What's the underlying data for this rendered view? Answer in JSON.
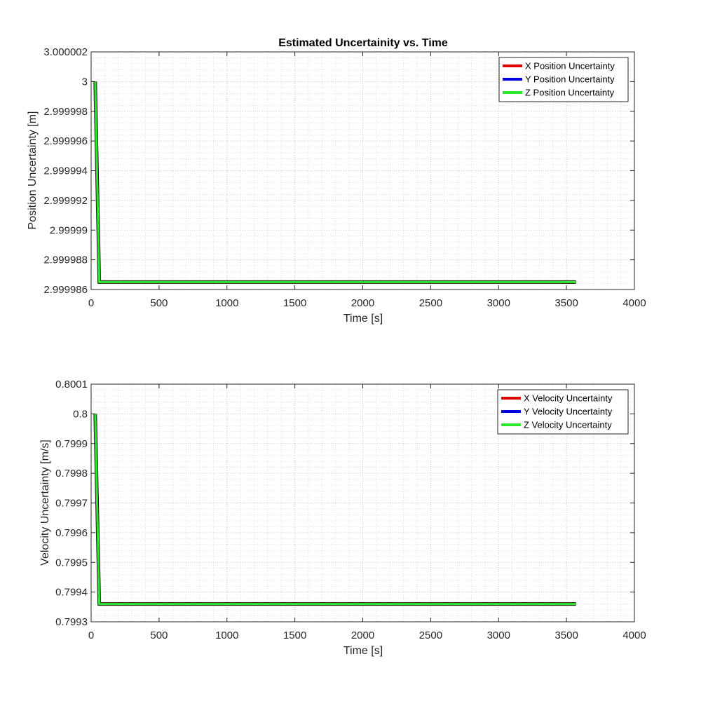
{
  "figure": {
    "background": "#ffffff"
  },
  "chart_data": [
    {
      "type": "line",
      "title": "Estimated Uncertainity vs. Time",
      "xlabel": "Time [s]",
      "ylabel": "Position Uncertainty [m]",
      "xlim": [
        0,
        4000
      ],
      "ylim": [
        2.999986,
        3.000002
      ],
      "xticks": [
        0,
        500,
        1000,
        1500,
        2000,
        2500,
        3000,
        3500,
        4000
      ],
      "xtick_labels": [
        "0",
        "500",
        "1000",
        "1500",
        "2000",
        "2500",
        "3000",
        "3500",
        "4000"
      ],
      "yticks": [
        2.999986,
        2.999988,
        2.99999,
        2.999992,
        2.999994,
        2.999996,
        2.999998,
        3,
        3.000002
      ],
      "ytick_labels": [
        "2.999986",
        "2.999988",
        "2.99999",
        "2.999992",
        "2.999994",
        "2.999996",
        "2.999998",
        "3",
        "3.000002"
      ],
      "grid": true,
      "minor_grid": true,
      "legend_position": "top-right",
      "series": [
        {
          "name": "X Position Uncertainty",
          "color": "#e00000",
          "x": [
            30,
            60,
            3570
          ],
          "y": [
            3.0,
            2.9999865,
            2.9999865
          ]
        },
        {
          "name": "Y Position Uncertainty",
          "color": "#0000e0",
          "x": [
            30,
            60,
            3570
          ],
          "y": [
            3.0,
            2.9999865,
            2.9999865
          ]
        },
        {
          "name": "Z Position Uncertainty",
          "color": "#2ee82e",
          "x": [
            30,
            60,
            3570
          ],
          "y": [
            3.0,
            2.9999865,
            2.9999865
          ]
        }
      ]
    },
    {
      "type": "line",
      "title": "",
      "xlabel": "Time [s]",
      "ylabel": "Velocity Uncertainty [m/s]",
      "xlim": [
        0,
        4000
      ],
      "ylim": [
        0.7993,
        0.8001
      ],
      "xticks": [
        0,
        500,
        1000,
        1500,
        2000,
        2500,
        3000,
        3500,
        4000
      ],
      "xtick_labels": [
        "0",
        "500",
        "1000",
        "1500",
        "2000",
        "2500",
        "3000",
        "3500",
        "4000"
      ],
      "yticks": [
        0.7993,
        0.7994,
        0.7995,
        0.7996,
        0.7997,
        0.7998,
        0.7999,
        0.8,
        0.8001
      ],
      "ytick_labels": [
        "0.7993",
        "0.7994",
        "0.7995",
        "0.7996",
        "0.7997",
        "0.7998",
        "0.7999",
        "0.8",
        "0.8001"
      ],
      "grid": true,
      "minor_grid": true,
      "legend_position": "top-right",
      "series": [
        {
          "name": "X Velocity Uncertainty",
          "color": "#e00000",
          "x": [
            30,
            60,
            3570
          ],
          "y": [
            0.8,
            0.79936,
            0.79936
          ]
        },
        {
          "name": "Y Velocity Uncertainty",
          "color": "#0000e0",
          "x": [
            30,
            60,
            3570
          ],
          "y": [
            0.8,
            0.79936,
            0.79936
          ]
        },
        {
          "name": "Z Velocity Uncertainty",
          "color": "#2ee82e",
          "x": [
            30,
            60,
            3570
          ],
          "y": [
            0.8,
            0.79936,
            0.79936
          ]
        }
      ]
    }
  ]
}
